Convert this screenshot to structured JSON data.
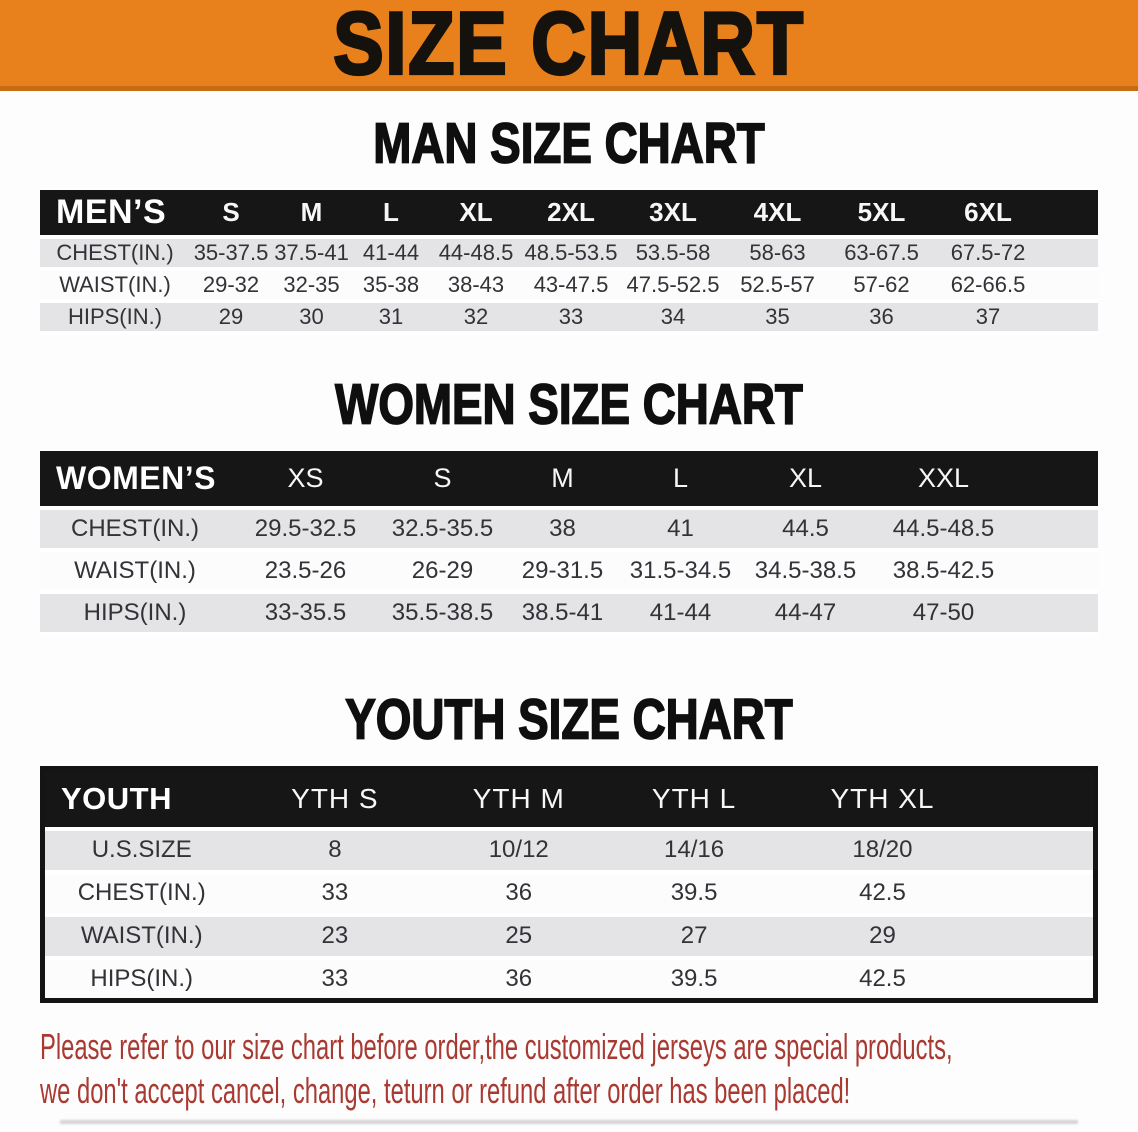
{
  "banner": {
    "title": "SIZE CHART"
  },
  "headings": {
    "men": "MAN SIZE CHART",
    "women": "WOMEN SIZE CHART",
    "youth": "YOUTH SIZE CHART"
  },
  "tables": {
    "men": {
      "label": "MEN’S",
      "sizes": [
        "S",
        "M",
        "L",
        "XL",
        "2XL",
        "3XL",
        "4XL",
        "5XL",
        "6XL"
      ],
      "rows": [
        {
          "label": "CHEST(IN.)",
          "values": [
            "35-37.5",
            "37.5-41",
            "41-44",
            "44-48.5",
            "48.5-53.5",
            "53.5-58",
            "58-63",
            "63-67.5",
            "67.5-72"
          ]
        },
        {
          "label": "WAIST(IN.)",
          "values": [
            "29-32",
            "32-35",
            "35-38",
            "38-43",
            "43-47.5",
            "47.5-52.5",
            "52.5-57",
            "57-62",
            "62-66.5"
          ]
        },
        {
          "label": "HIPS(IN.)",
          "values": [
            "29",
            "30",
            "31",
            "32",
            "33",
            "34",
            "35",
            "36",
            "37"
          ]
        }
      ]
    },
    "women": {
      "label": "WOMEN’S",
      "sizes": [
        "XS",
        "S",
        "M",
        "L",
        "XL",
        "XXL"
      ],
      "rows": [
        {
          "label": "CHEST(IN.)",
          "values": [
            "29.5-32.5",
            "32.5-35.5",
            "38",
            "41",
            "44.5",
            "44.5-48.5"
          ]
        },
        {
          "label": "WAIST(IN.)",
          "values": [
            "23.5-26",
            "26-29",
            "29-31.5",
            "31.5-34.5",
            "34.5-38.5",
            "38.5-42.5"
          ]
        },
        {
          "label": "HIPS(IN.)",
          "values": [
            "33-35.5",
            "35.5-38.5",
            "38.5-41",
            "41-44",
            "44-47",
            "47-50"
          ]
        }
      ]
    },
    "youth": {
      "label": "YOUTH",
      "sizes": [
        "YTH S",
        "YTH M",
        "YTH L",
        "YTH XL"
      ],
      "rows": [
        {
          "label": "U.S.SIZE",
          "values": [
            "8",
            "10/12",
            "14/16",
            "18/20"
          ]
        },
        {
          "label": "CHEST(IN.)",
          "values": [
            "33",
            "36",
            "39.5",
            "42.5"
          ]
        },
        {
          "label": "WAIST(IN.)",
          "values": [
            "23",
            "25",
            "27",
            "29"
          ]
        },
        {
          "label": "HIPS(IN.)",
          "values": [
            "33",
            "36",
            "39.5",
            "42.5"
          ]
        }
      ]
    }
  },
  "disclaimer": {
    "line1": "Please refer to our size chart before order,the customized jerseys are special products,",
    "line2": "we don't accept cancel, change, teturn or refund after order has been placed!"
  },
  "colors": {
    "banner_orange": "#e8811b",
    "banner_edge": "#c76b10",
    "header_black": "#161616",
    "row_gray": "#e4e4e6",
    "disclaimer_red": "#a93a31"
  }
}
